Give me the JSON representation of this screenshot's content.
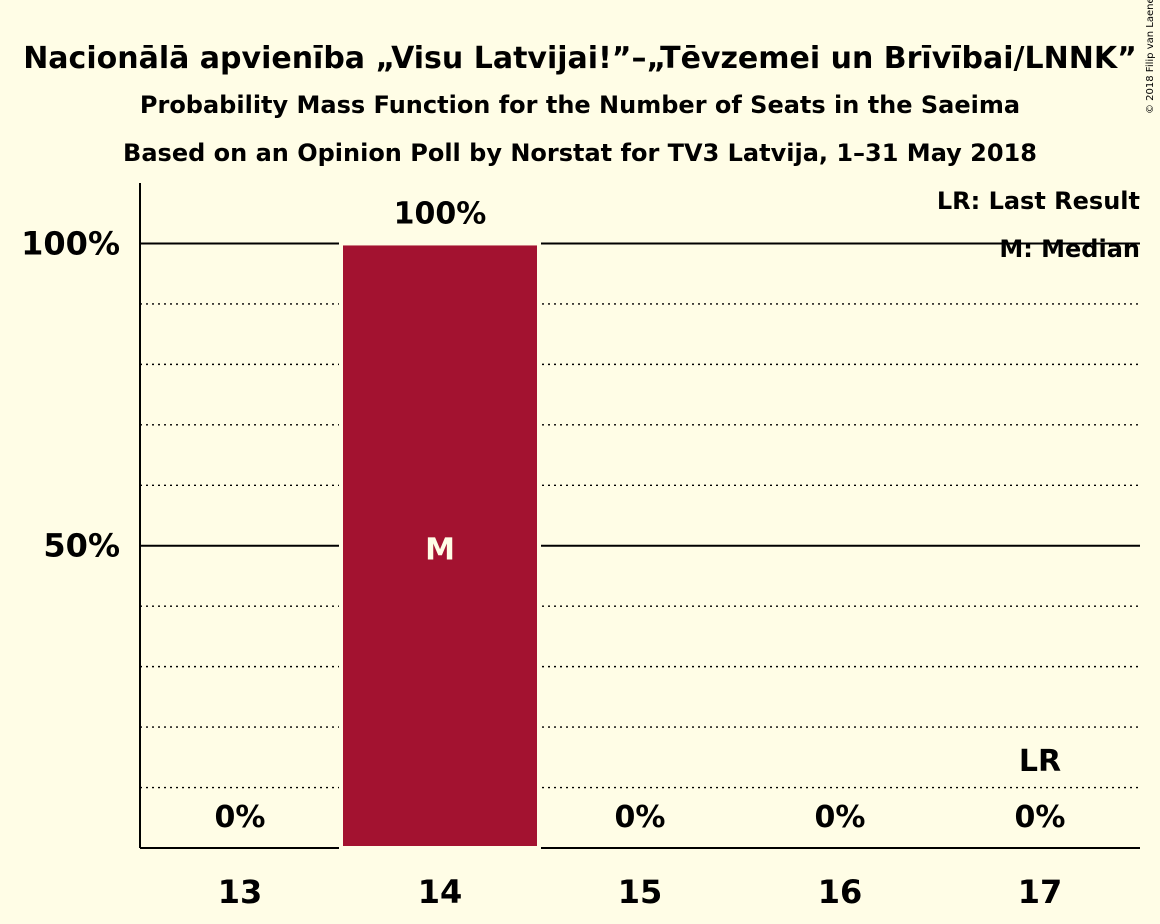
{
  "chart_data": {
    "type": "bar",
    "title": "Nacionālā apvienība „Visu Latvijai!”–„Tēvzemei un Brīvībai/LNNK”",
    "subtitle_1": "Probability Mass Function for the Number of Seats in the Saeima",
    "subtitle_2": "Based on an Opinion Poll by Norstat for TV3 Latvija, 1–31 May 2018",
    "categories": [
      "13",
      "14",
      "15",
      "16",
      "17"
    ],
    "values": [
      0,
      1,
      0,
      0,
      0
    ],
    "value_labels": [
      "0%",
      "100%",
      "0%",
      "0%",
      "0%"
    ],
    "median_category": "14",
    "median_marker": "M",
    "last_result_category": "17",
    "last_result_marker": "LR",
    "ylim": [
      0,
      1.1
    ],
    "yticks": [
      {
        "value": 0.5,
        "label": "50%"
      },
      {
        "value": 1.0,
        "label": "100%"
      }
    ],
    "minor_grid": [
      0.1,
      0.2,
      0.3,
      0.4,
      0.6,
      0.7,
      0.8,
      0.9
    ],
    "grid": true,
    "legend": {
      "placement": "top-right",
      "items": [
        "LR: Last Result",
        "M: Median"
      ]
    },
    "bar_color": "#A31230",
    "background": "#FFFDE6",
    "copyright": "© 2018 Filip van Laenen"
  }
}
